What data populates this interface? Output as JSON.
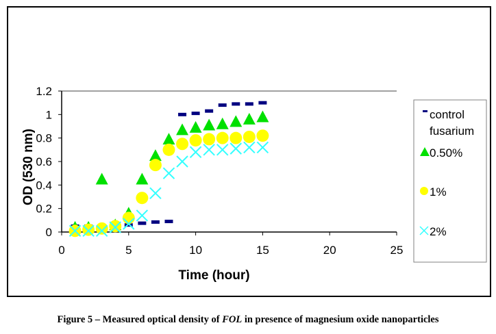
{
  "chart_data": {
    "type": "scatter",
    "title": "",
    "xlabel": "Time (hour)",
    "ylabel": "OD (530 nm)",
    "xlim": [
      0,
      25
    ],
    "ylim": [
      0,
      1.2
    ],
    "xticks": [
      "0",
      "5",
      "10",
      "15",
      "20",
      "25"
    ],
    "yticks": [
      "0",
      "0.2",
      "0.4",
      "0.6",
      "0.8",
      "1",
      "1.2"
    ],
    "grid": false,
    "legend_position": "right",
    "x": [
      1,
      2,
      3,
      4,
      5,
      6,
      7,
      8,
      9,
      10,
      11,
      12,
      13,
      14,
      15
    ],
    "series": [
      {
        "name": "control fusarium",
        "name_lines": [
          "control",
          "fusarium"
        ],
        "marker": "dash",
        "color": "#000080",
        "values": [
          0.05,
          0.05,
          0.05,
          0.05,
          0.06,
          0.075,
          0.085,
          0.09,
          1.0,
          1.01,
          1.03,
          1.08,
          1.09,
          1.09,
          1.1
        ]
      },
      {
        "name": "0.50%",
        "marker": "triangle",
        "color": "#00e000",
        "values": [
          0.03,
          0.03,
          0.44,
          0.05,
          0.15,
          0.44,
          0.64,
          0.78,
          0.86,
          0.88,
          0.9,
          0.91,
          0.93,
          0.95,
          0.97
        ]
      },
      {
        "name": "1%",
        "marker": "circle",
        "color": "#ffff00",
        "values": [
          0.01,
          0.02,
          0.03,
          0.05,
          0.12,
          0.29,
          0.57,
          0.7,
          0.75,
          0.78,
          0.79,
          0.8,
          0.8,
          0.81,
          0.82
        ]
      },
      {
        "name": "2%",
        "marker": "x",
        "color": "#33ffff",
        "values": [
          0.01,
          0.01,
          0.01,
          0.04,
          0.07,
          0.14,
          0.33,
          0.5,
          0.6,
          0.68,
          0.7,
          0.7,
          0.71,
          0.72,
          0.72
        ]
      }
    ]
  },
  "caption": {
    "prefix": "Figure 5 – Measured optical density of ",
    "italic": "FOL",
    "suffix": " in presence of magnesium oxide nanoparticles"
  }
}
